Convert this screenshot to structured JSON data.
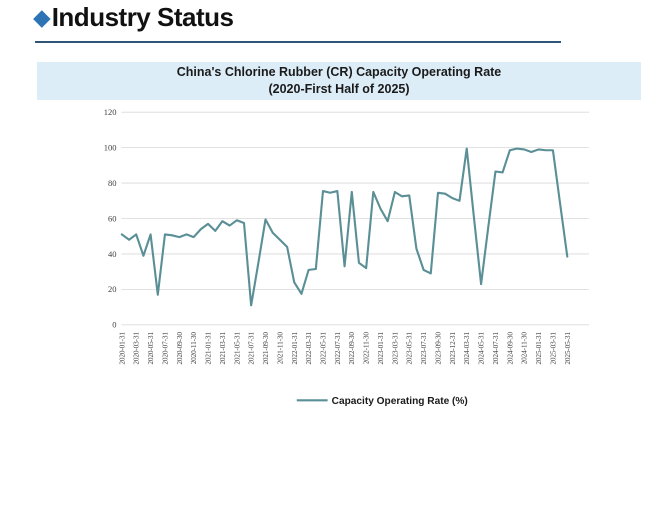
{
  "header": {
    "bullet_icon": "diamond-icon",
    "title": "Industry Status",
    "accent_color": "#2e74b5",
    "rule_color": "#2e5578"
  },
  "chart_data": {
    "type": "line",
    "title": "China's Chlorine Rubber (CR) Capacity Operating Rate",
    "subtitle": "(2020-First Half of 2025)",
    "title_bg_color": "#dcedf8",
    "legend": "Capacity Operating Rate (%)",
    "legend_position": "bottom-center",
    "line_color": "#5a8f96",
    "grid": true,
    "grid_color": "#d9d9d9",
    "ylim": [
      0,
      120
    ],
    "yticks": [
      0,
      20,
      40,
      60,
      80,
      100,
      120
    ],
    "xlabel": "",
    "ylabel": "",
    "x_labels": [
      "2020-01-31",
      "2020-03-31",
      "2020-05-31",
      "2020-07-31",
      "2020-09-30",
      "2020-11-30",
      "2021-01-31",
      "2021-03-31",
      "2021-05-31",
      "2021-07-31",
      "2021-09-30",
      "2021-11-30",
      "2022-01-31",
      "2022-03-31",
      "2022-05-31",
      "2022-07-31",
      "2022-09-30",
      "2022-11-30",
      "2023-01-31",
      "2023-03-31",
      "2023-05-31",
      "2023-07-31",
      "2023-09-30",
      "2023-12-31",
      "2024-03-31",
      "2024-05-31",
      "2024-07-31",
      "2024-09-30",
      "2024-11-30",
      "2025-01-31",
      "2025-03-31",
      "2025-05-31"
    ],
    "label_every": 2,
    "values": [
      51,
      48,
      51,
      39,
      51,
      17,
      51,
      50.5,
      49.5,
      51,
      49.5,
      54,
      57,
      53,
      58.5,
      56,
      59,
      57.5,
      11,
      35,
      59.5,
      52,
      48,
      44,
      24,
      17.5,
      31,
      31.5,
      75.5,
      74.5,
      75.5,
      33,
      75,
      35,
      32,
      75,
      65.5,
      58.5,
      75,
      72.5,
      73,
      43,
      31,
      29,
      74.5,
      74,
      71.5,
      70,
      99.5,
      61,
      23,
      55,
      86.5,
      86,
      98.5,
      99.5,
      99,
      97.5,
      99,
      98.5,
      98.5,
      68.5,
      38.5
    ]
  }
}
